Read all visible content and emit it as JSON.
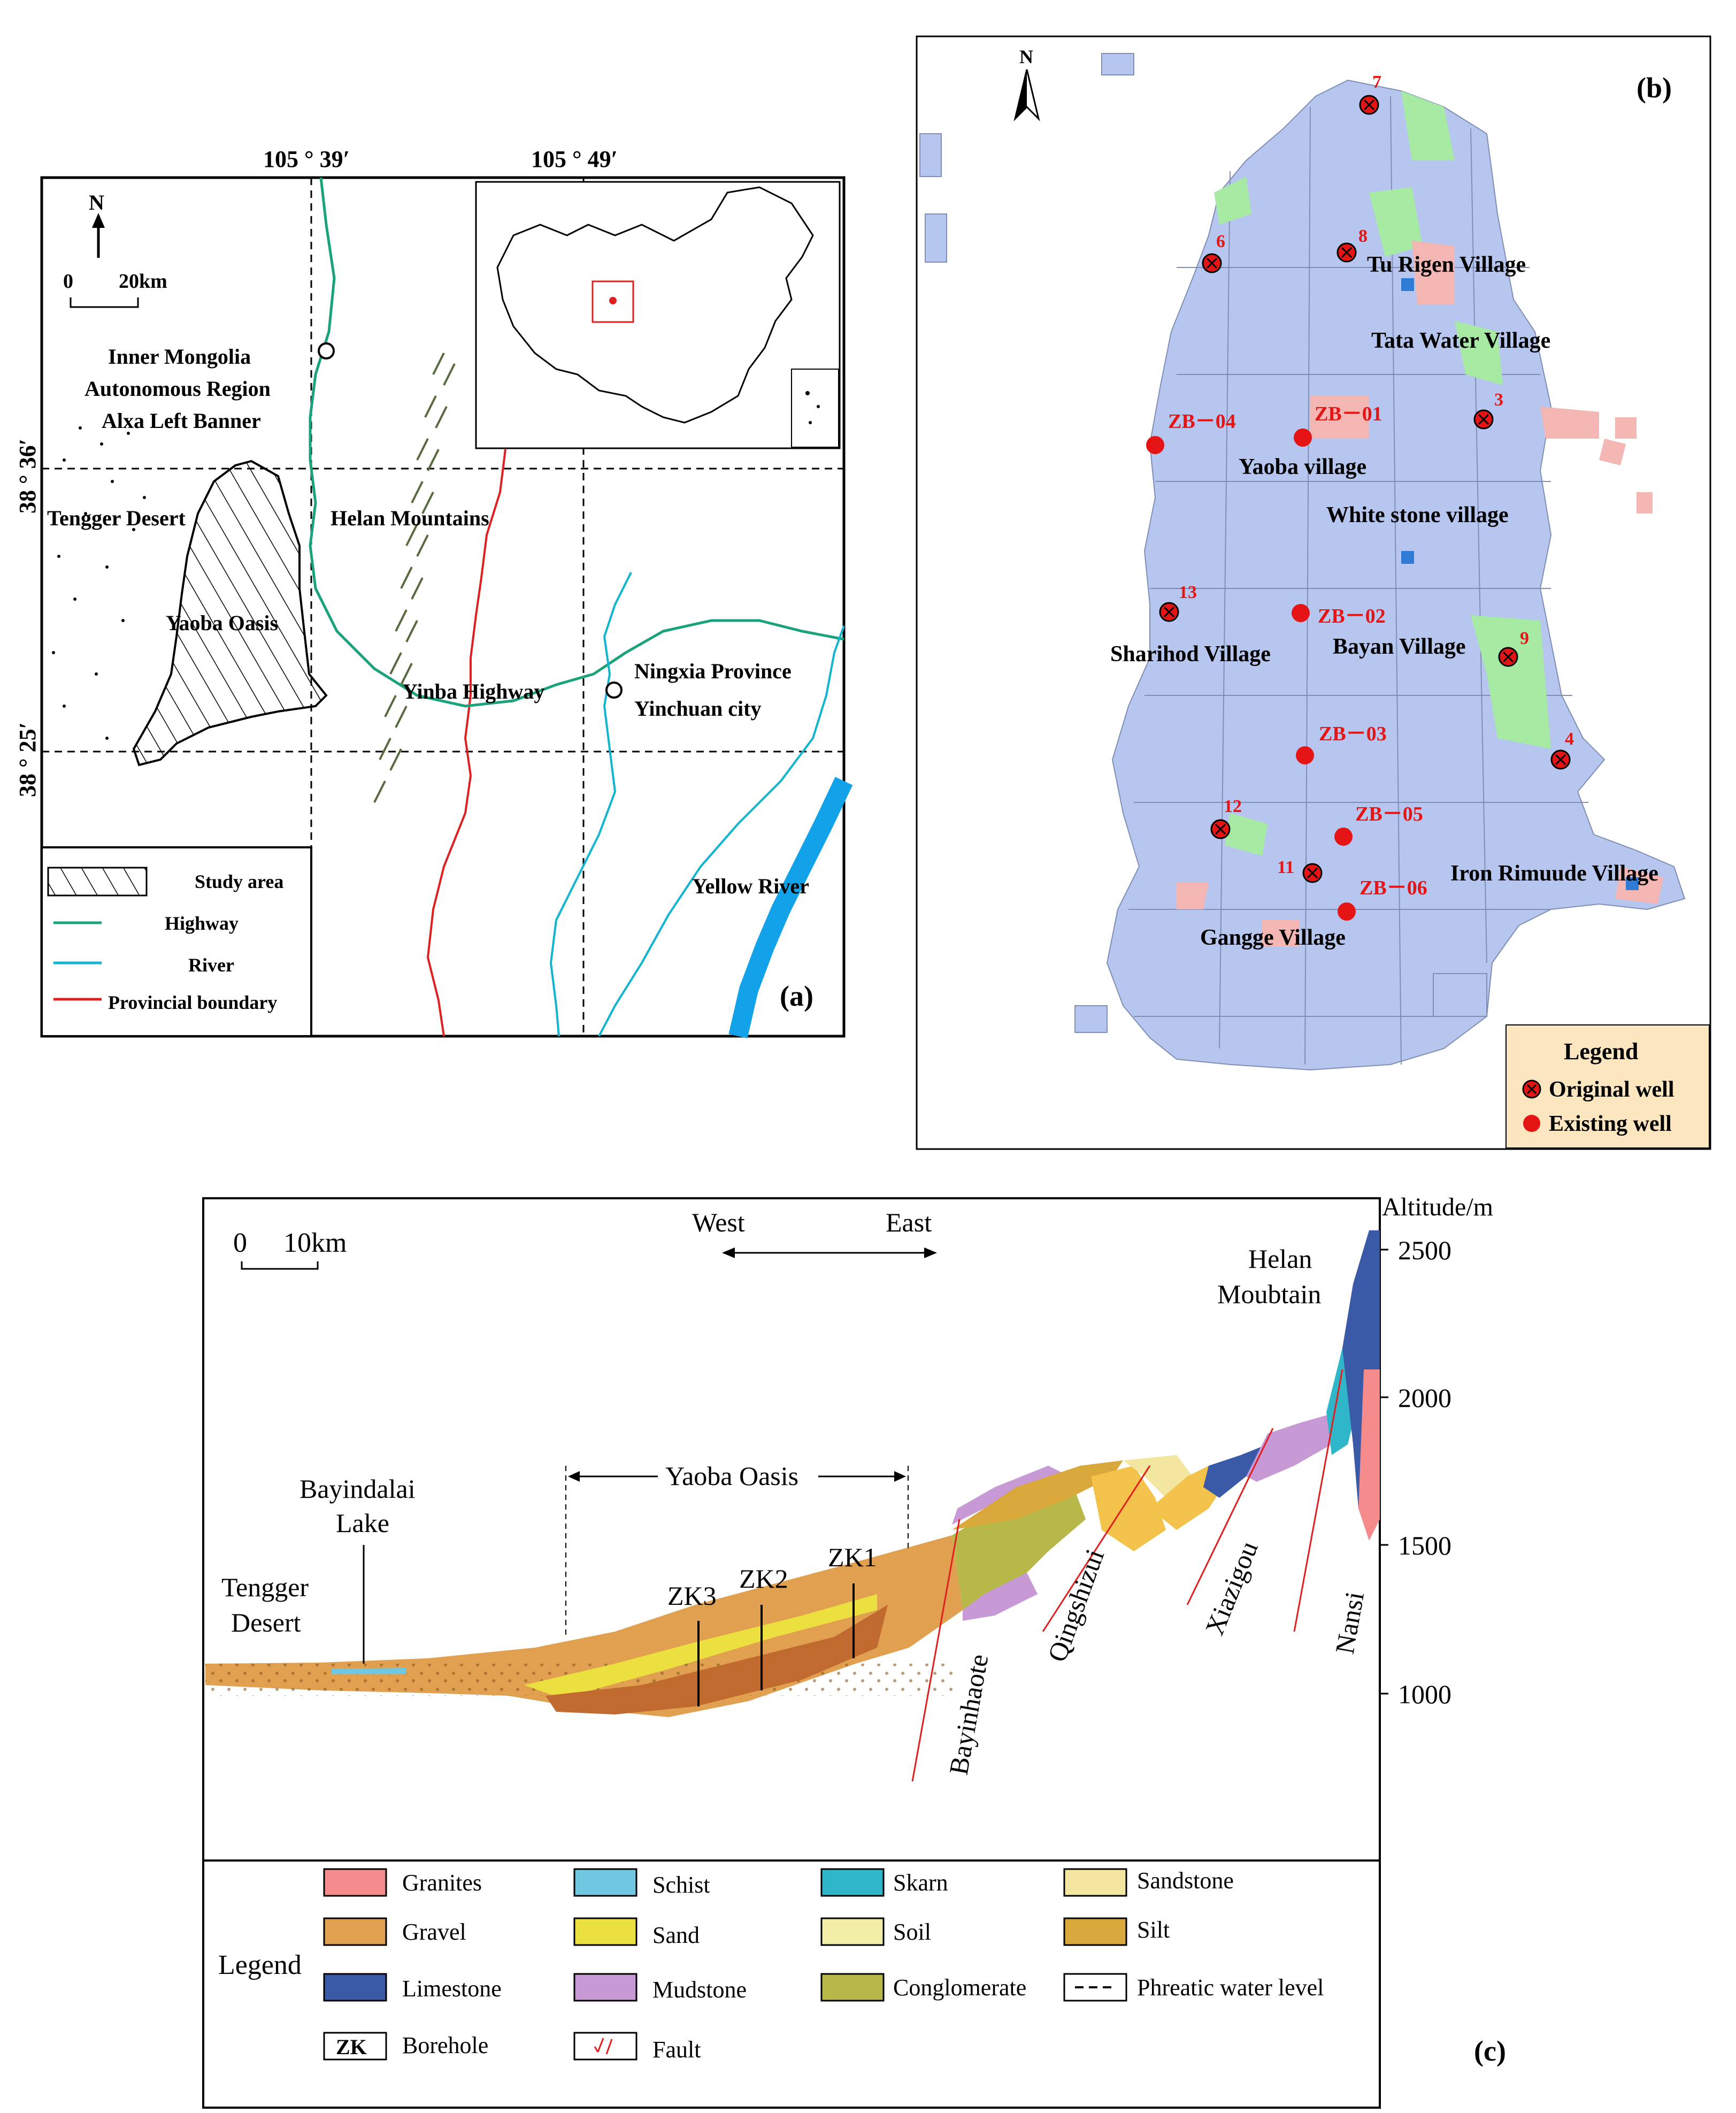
{
  "panel_a": {
    "coords": {
      "lon1": "105 ° 39′",
      "lon2": "105 ° 49′",
      "lat1": "38 ° 36′",
      "lat2": "38 ° 25′"
    },
    "north": "N",
    "scale_zero": "0",
    "scale_dist": "20km",
    "labels": {
      "inner_mongolia_1": "Inner Mongolia",
      "inner_mongolia_2": "Autonomous Region",
      "inner_mongolia_3": "Alxa Left Banner",
      "tengger": "Tengger Desert",
      "helan": "Helan Mountains",
      "yaoba": "Yaoba Oasis",
      "yinba": "Yinba Highway",
      "ningxia_1": "Ningxia Province",
      "ningxia_2": "Yinchuan city",
      "yellow_river": "Yellow River"
    },
    "legend": [
      {
        "label": "Study area",
        "symbol": "hatch"
      },
      {
        "label": "Highway",
        "color": "#1aa37a"
      },
      {
        "label": "River",
        "color": "#12b5d0"
      },
      {
        "label": "Provincial boundary",
        "color": "#e02020"
      }
    ],
    "tag": "(a)"
  },
  "panel_b": {
    "north": "N",
    "tag": "(b)",
    "villages": [
      "Tu Rigen Village",
      "Tata Water Village",
      "Yaoba village",
      "White stone village",
      "Sharihod Village",
      "Bayan Village",
      "Iron Rimuude Village",
      "Gangge Village"
    ],
    "original_wells": [
      "7",
      "6",
      "8",
      "3",
      "13",
      "9",
      "4",
      "12",
      "11"
    ],
    "existing_wells": [
      "ZB－04",
      "ZB－01",
      "ZB－02",
      "ZB－03",
      "ZB－05",
      "ZB－06"
    ],
    "legend_title": "Legend",
    "legend_original": "Original well",
    "legend_existing": "Existing well",
    "colors": {
      "land": "#b7c6ee",
      "green": "#a6eaa4",
      "urban": "#f3b6b3",
      "well": "#e51515"
    }
  },
  "panel_c": {
    "scale_zero": "0",
    "scale_dist": "10km",
    "west": "West",
    "east": "East",
    "altitude_label": "Altitude/m",
    "altitude_ticks": [
      "2500",
      "2000",
      "1500",
      "1000"
    ],
    "helan_1": "Helan",
    "helan_2": "Moubtain",
    "bayindalai_1": "Bayindalai",
    "bayindalai_2": "Lake",
    "tengger_1": "Tengger",
    "tengger_2": "Desert",
    "yaoba_oasis": "Yaoba Oasis",
    "boreholes": [
      "ZK1",
      "ZK2",
      "ZK3"
    ],
    "faults": [
      "Bayinhaote",
      "Qingshizui",
      "Xiazigou",
      "Nansi"
    ],
    "legend_title": "Legend",
    "legend": [
      {
        "label": "Granites",
        "color": "#f58a8a"
      },
      {
        "label": "Schist",
        "color": "#6fc8e0"
      },
      {
        "label": "Skarn",
        "color": "#2fb7c9"
      },
      {
        "label": "Sandstone",
        "color": "#f2e6a0"
      },
      {
        "label": "Gravel",
        "color": "#e0a050"
      },
      {
        "label": "Sand",
        "color": "#ece040"
      },
      {
        "label": "Soil",
        "color": "#f2eea8"
      },
      {
        "label": "Silt",
        "color": "#d9a83a"
      },
      {
        "label": "Limestone",
        "color": "#3a5aa8"
      },
      {
        "label": "Mudstone",
        "color": "#c79ad6"
      },
      {
        "label": "Conglomerate",
        "color": "#b8b84a"
      },
      {
        "label": "Phreatic water level",
        "color": "#000000"
      },
      {
        "label": "Borehole",
        "symbol": "ZK"
      },
      {
        "label": "Fault",
        "color": "#e02020"
      }
    ],
    "tag": "(c)"
  }
}
